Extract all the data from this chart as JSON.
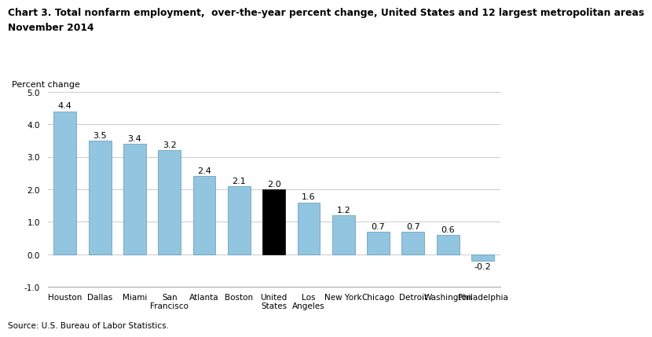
{
  "title_line1": "Chart 3. Total nonfarm employment,  over-the-year percent change, United States and 12 largest metropolitan areas",
  "title_line2": "November 2014",
  "ylabel": "Percent change",
  "source": "Source: U.S. Bureau of Labor Statistics.",
  "categories": [
    "Houston",
    "Dallas",
    "Miami",
    "San\nFrancisco",
    "Atlanta",
    "Boston",
    "United\nStates",
    "Los\nAngeles",
    "New York",
    "Chicago",
    "Detroit",
    "Washington",
    "Philadelphia"
  ],
  "values": [
    4.4,
    3.5,
    3.4,
    3.2,
    2.4,
    2.1,
    2.0,
    1.6,
    1.2,
    0.7,
    0.7,
    0.6,
    -0.2
  ],
  "bar_colors": [
    "#92C5E0",
    "#92C5E0",
    "#92C5E0",
    "#92C5E0",
    "#92C5E0",
    "#92C5E0",
    "#000000",
    "#92C5E0",
    "#92C5E0",
    "#92C5E0",
    "#92C5E0",
    "#92C5E0",
    "#92C5E0"
  ],
  "bar_edgecolor": "#5a9ab8",
  "ylim": [
    -1.0,
    5.0
  ],
  "yticks": [
    -1.0,
    0.0,
    1.0,
    2.0,
    3.0,
    4.0,
    5.0
  ],
  "ytick_labels": [
    "-1.0",
    "0.0",
    "1.0",
    "2.0",
    "3.0",
    "4.0",
    "5.0"
  ],
  "background_color": "#ffffff",
  "grid_color": "#cccccc",
  "title_fontsize": 8.8,
  "label_fontsize": 8.0,
  "tick_fontsize": 7.5,
  "value_fontsize": 8.0,
  "source_fontsize": 7.5
}
